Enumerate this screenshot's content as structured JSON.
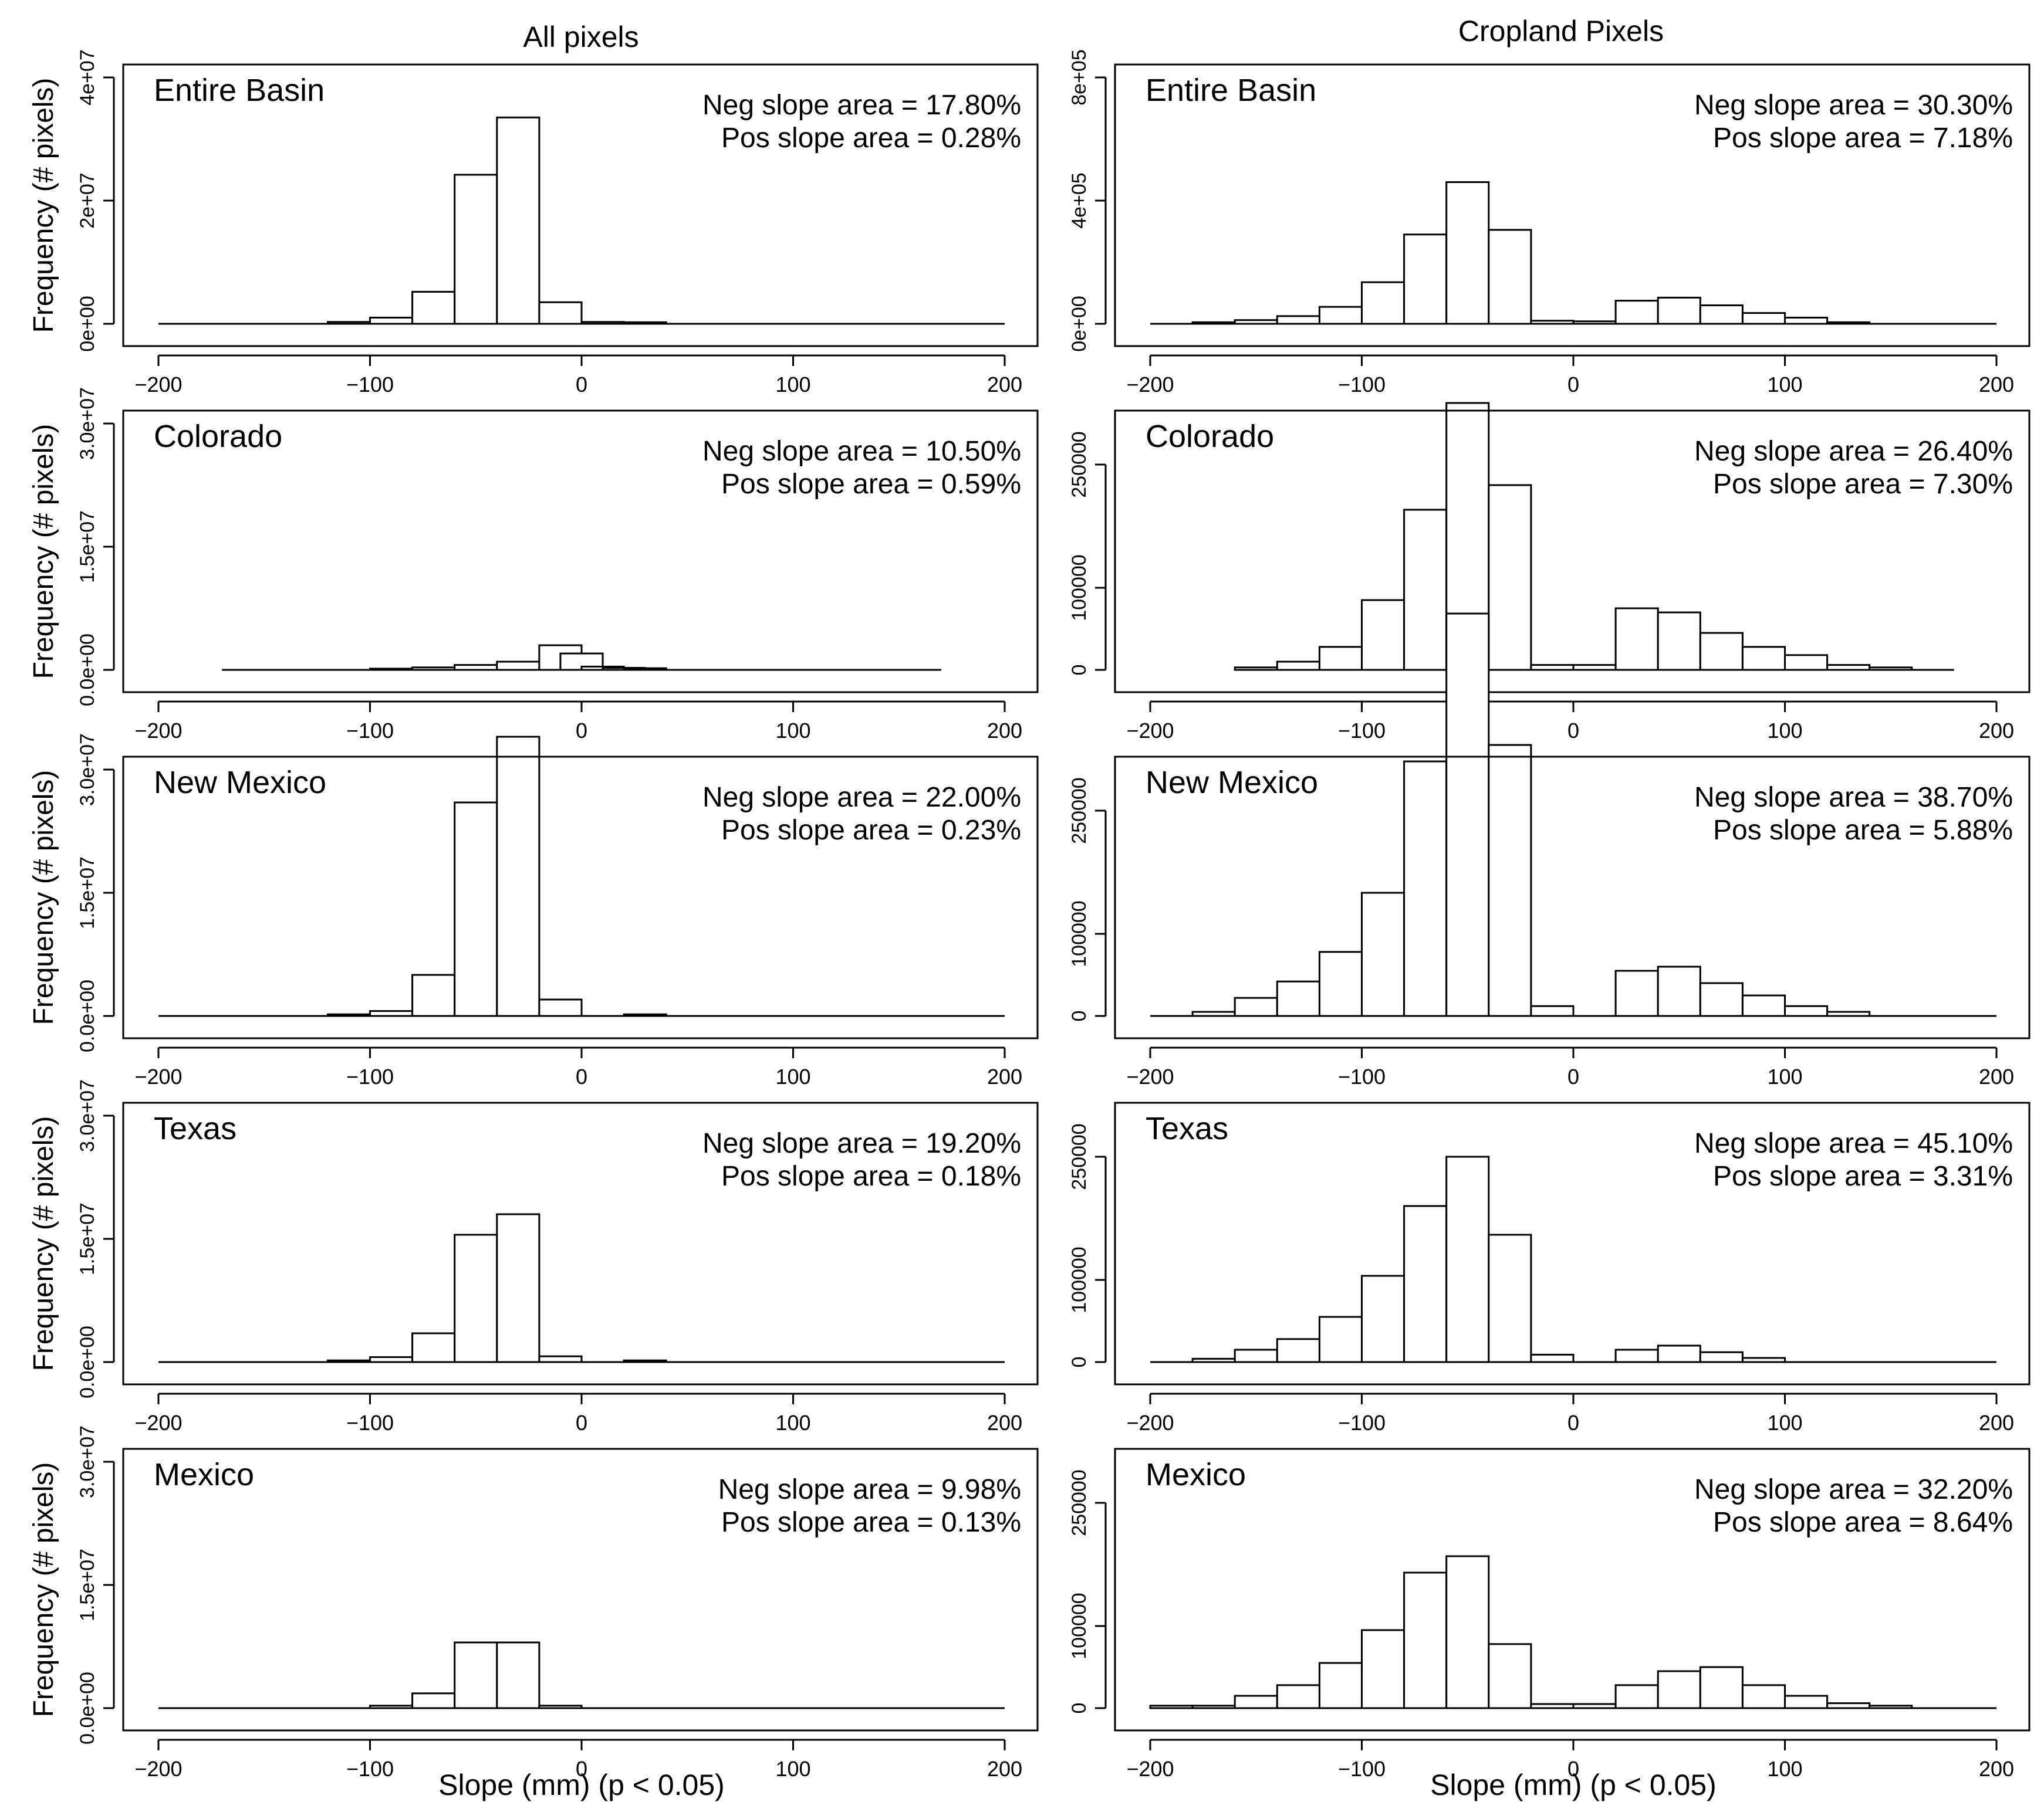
{
  "figure": {
    "col_titles": [
      "All pixels",
      "Cropland Pixels"
    ],
    "ylabel": "Frequency (# pixels)",
    "xlabel": "Slope (mm) (p < 0.05)"
  },
  "chart_data": [
    {
      "type": "bar",
      "panel": "all-entire-basin",
      "title": "Entire Basin",
      "ylabel": "Frequency (# pixels)",
      "xlabel": "",
      "xlim": [
        -200,
        200
      ],
      "ylim": [
        0,
        40000000
      ],
      "xticks": [
        -200,
        -100,
        0,
        100,
        200
      ],
      "xtick_labels": [
        "-200",
        "-100",
        "0",
        "100",
        "200"
      ],
      "yticks": [
        0,
        20000000,
        40000000
      ],
      "ytick_labels": [
        "0e+00",
        "2e+07",
        "4e+07"
      ],
      "baseline": [
        -200,
        200
      ],
      "bin_width": 20,
      "bins": [
        [
          -120,
          300000
        ],
        [
          -100,
          1000000
        ],
        [
          -80,
          5200000
        ],
        [
          -60,
          24200000
        ],
        [
          -40,
          33500000
        ],
        [
          -20,
          3500000
        ],
        [
          0,
          300000
        ],
        [
          20,
          250000
        ]
      ],
      "annotations": [
        "Neg slope area = 17.80%",
        "Pos slope area = 0.28%"
      ]
    },
    {
      "type": "bar",
      "panel": "crop-entire-basin",
      "title": "Entire Basin",
      "ylabel": "",
      "xlabel": "",
      "xlim": [
        -200,
        200
      ],
      "ylim": [
        0,
        800000
      ],
      "xticks": [
        -200,
        -100,
        0,
        100,
        200
      ],
      "xtick_labels": [
        "-200",
        "-100",
        "0",
        "100",
        "200"
      ],
      "yticks": [
        0,
        400000,
        800000
      ],
      "ytick_labels": [
        "0e+00",
        "4e+05",
        "8e+05"
      ],
      "baseline": [
        -200,
        200
      ],
      "bin_width": 20,
      "bins": [
        [
          -180,
          5000
        ],
        [
          -160,
          12000
        ],
        [
          -140,
          25000
        ],
        [
          -120,
          55000
        ],
        [
          -100,
          135000
        ],
        [
          -80,
          290000
        ],
        [
          -60,
          460000
        ],
        [
          -40,
          305000
        ],
        [
          -20,
          10000
        ],
        [
          0,
          8000
        ],
        [
          20,
          75000
        ],
        [
          40,
          85000
        ],
        [
          60,
          60000
        ],
        [
          80,
          35000
        ],
        [
          100,
          20000
        ],
        [
          120,
          5000
        ]
      ],
      "annotations": [
        "Neg slope area = 30.30%",
        "Pos slope area = 7.18%"
      ]
    },
    {
      "type": "bar",
      "panel": "all-colorado",
      "title": "Colorado",
      "ylabel": "Frequency (# pixels)",
      "xlabel": "",
      "xlim": [
        -200,
        200
      ],
      "ylim": [
        0,
        30000000
      ],
      "xticks": [
        -200,
        -100,
        0,
        100,
        200
      ],
      "xtick_labels": [
        "-200",
        "-100",
        "0",
        "100",
        "200"
      ],
      "yticks": [
        0,
        15000000,
        30000000
      ],
      "ytick_labels": [
        "0.0e+00",
        "1.5e+07",
        "3.0e+07"
      ],
      "baseline": [
        -170,
        170
      ],
      "bin_width": 20,
      "bins": [
        [
          -100,
          150000
        ],
        [
          -80,
          300000
        ],
        [
          -60,
          600000
        ],
        [
          -40,
          1000000
        ],
        [
          -20,
          3000000
        ],
        [
          -10,
          2000000
        ],
        [
          0,
          400000
        ],
        [
          10,
          250000
        ],
        [
          20,
          200000
        ]
      ],
      "annotations": [
        "Neg slope area = 10.50%",
        "Pos slope area = 0.59%"
      ]
    },
    {
      "type": "bar",
      "panel": "crop-colorado",
      "title": "Colorado",
      "ylabel": "",
      "xlabel": "",
      "xlim": [
        -200,
        200
      ],
      "ylim": [
        0,
        300000
      ],
      "xticks": [
        -200,
        -100,
        0,
        100,
        200
      ],
      "xtick_labels": [
        "-200",
        "-100",
        "0",
        "100",
        "200"
      ],
      "yticks": [
        0,
        100000,
        250000
      ],
      "ytick_labels": [
        "0",
        "100000",
        "250000"
      ],
      "baseline": [
        -160,
        180
      ],
      "bin_width": 20,
      "bins": [
        [
          -160,
          3000
        ],
        [
          -140,
          10000
        ],
        [
          -120,
          28000
        ],
        [
          -100,
          85000
        ],
        [
          -80,
          195000
        ],
        [
          -60,
          325000
        ],
        [
          -40,
          225000
        ],
        [
          -20,
          6000
        ],
        [
          0,
          6000
        ],
        [
          20,
          75000
        ],
        [
          40,
          70000
        ],
        [
          60,
          45000
        ],
        [
          80,
          28000
        ],
        [
          100,
          18000
        ],
        [
          120,
          6000
        ],
        [
          140,
          3000
        ]
      ],
      "annotations": [
        "Neg slope area = 26.40%",
        "Pos slope area = 7.30%"
      ]
    },
    {
      "type": "bar",
      "panel": "all-new-mexico",
      "title": "New Mexico",
      "ylabel": "Frequency (# pixels)",
      "xlabel": "",
      "xlim": [
        -200,
        200
      ],
      "ylim": [
        0,
        30000000
      ],
      "xticks": [
        -200,
        -100,
        0,
        100,
        200
      ],
      "xtick_labels": [
        "-200",
        "-100",
        "0",
        "100",
        "200"
      ],
      "yticks": [
        0,
        15000000,
        30000000
      ],
      "ytick_labels": [
        "0.0e+00",
        "1.5e+07",
        "3.0e+07"
      ],
      "baseline": [
        -200,
        200
      ],
      "bin_width": 20,
      "bins": [
        [
          -120,
          200000
        ],
        [
          -100,
          600000
        ],
        [
          -80,
          5000000
        ],
        [
          -60,
          26000000
        ],
        [
          -40,
          34000000
        ],
        [
          -20,
          2000000
        ],
        [
          20,
          200000
        ]
      ],
      "annotations": [
        "Neg slope area = 22.00%",
        "Pos slope area = 0.23%"
      ]
    },
    {
      "type": "bar",
      "panel": "crop-new-mexico",
      "title": "New Mexico",
      "ylabel": "",
      "xlabel": "",
      "xlim": [
        -200,
        200
      ],
      "ylim": [
        0,
        300000
      ],
      "xticks": [
        -200,
        -100,
        0,
        100,
        200
      ],
      "xtick_labels": [
        "-200",
        "-100",
        "0",
        "100",
        "200"
      ],
      "yticks": [
        0,
        100000,
        250000
      ],
      "ytick_labels": [
        "0",
        "100000",
        "250000"
      ],
      "baseline": [
        -200,
        200
      ],
      "bin_width": 20,
      "bins": [
        [
          -180,
          5000
        ],
        [
          -160,
          22000
        ],
        [
          -140,
          42000
        ],
        [
          -120,
          78000
        ],
        [
          -100,
          150000
        ],
        [
          -80,
          310000
        ],
        [
          -60,
          490000
        ],
        [
          -40,
          330000
        ],
        [
          -20,
          12000
        ],
        [
          20,
          55000
        ],
        [
          40,
          60000
        ],
        [
          60,
          40000
        ],
        [
          80,
          25000
        ],
        [
          100,
          12000
        ],
        [
          120,
          5000
        ]
      ],
      "annotations": [
        "Neg slope area = 38.70%",
        "Pos slope area = 5.88%"
      ]
    },
    {
      "type": "bar",
      "panel": "all-texas",
      "title": "Texas",
      "ylabel": "Frequency (# pixels)",
      "xlabel": "",
      "xlim": [
        -200,
        200
      ],
      "ylim": [
        0,
        30000000
      ],
      "xticks": [
        -200,
        -100,
        0,
        100,
        200
      ],
      "xtick_labels": [
        "-200",
        "-100",
        "0",
        "100",
        "200"
      ],
      "yticks": [
        0,
        15000000,
        30000000
      ],
      "ytick_labels": [
        "0.0e+00",
        "1.5e+07",
        "3.0e+07"
      ],
      "baseline": [
        -200,
        200
      ],
      "bin_width": 20,
      "bins": [
        [
          -120,
          200000
        ],
        [
          -100,
          600000
        ],
        [
          -80,
          3500000
        ],
        [
          -60,
          15500000
        ],
        [
          -40,
          18000000
        ],
        [
          -20,
          700000
        ],
        [
          20,
          200000
        ]
      ],
      "annotations": [
        "Neg slope area = 19.20%",
        "Pos slope area = 0.18%"
      ]
    },
    {
      "type": "bar",
      "panel": "crop-texas",
      "title": "Texas",
      "ylabel": "",
      "xlabel": "",
      "xlim": [
        -200,
        200
      ],
      "ylim": [
        0,
        300000
      ],
      "xticks": [
        -200,
        -100,
        0,
        100,
        200
      ],
      "xtick_labels": [
        "-200",
        "-100",
        "0",
        "100",
        "200"
      ],
      "yticks": [
        0,
        100000,
        250000
      ],
      "ytick_labels": [
        "0",
        "100000",
        "250000"
      ],
      "baseline": [
        -200,
        200
      ],
      "bin_width": 20,
      "bins": [
        [
          -180,
          4000
        ],
        [
          -160,
          15000
        ],
        [
          -140,
          28000
        ],
        [
          -120,
          55000
        ],
        [
          -100,
          105000
        ],
        [
          -80,
          190000
        ],
        [
          -60,
          250000
        ],
        [
          -40,
          155000
        ],
        [
          -20,
          9000
        ],
        [
          20,
          15000
        ],
        [
          40,
          20000
        ],
        [
          60,
          12000
        ],
        [
          80,
          5000
        ]
      ],
      "annotations": [
        "Neg slope area = 45.10%",
        "Pos slope area = 3.31%"
      ]
    },
    {
      "type": "bar",
      "panel": "all-mexico",
      "title": "Mexico",
      "ylabel": "Frequency (# pixels)",
      "xlabel": "Slope (mm) (p < 0.05)",
      "xlim": [
        -200,
        200
      ],
      "ylim": [
        0,
        30000000
      ],
      "xticks": [
        -200,
        -100,
        0,
        100,
        200
      ],
      "xtick_labels": [
        "-200",
        "-100",
        "0",
        "100",
        "200"
      ],
      "yticks": [
        0,
        15000000,
        30000000
      ],
      "ytick_labels": [
        "0.0e+00",
        "1.5e+07",
        "3.0e+07"
      ],
      "baseline": [
        -200,
        200
      ],
      "bin_width": 20,
      "bins": [
        [
          -100,
          300000
        ],
        [
          -80,
          1800000
        ],
        [
          -60,
          8000000
        ],
        [
          -40,
          8000000
        ],
        [
          -20,
          300000
        ]
      ],
      "annotations": [
        "Neg slope area = 9.98%",
        "Pos slope area = 0.13%"
      ]
    },
    {
      "type": "bar",
      "panel": "crop-mexico",
      "title": "Mexico",
      "ylabel": "",
      "xlabel": "Slope (mm) (p < 0.05)",
      "xlim": [
        -200,
        200
      ],
      "ylim": [
        0,
        300000
      ],
      "xticks": [
        -200,
        -100,
        0,
        100,
        200
      ],
      "xtick_labels": [
        "-200",
        "-100",
        "0",
        "100",
        "200"
      ],
      "yticks": [
        0,
        100000,
        250000
      ],
      "ytick_labels": [
        "0",
        "100000",
        "250000"
      ],
      "baseline": [
        -200,
        200
      ],
      "bin_width": 20,
      "bins": [
        [
          -200,
          3000
        ],
        [
          -180,
          3000
        ],
        [
          -160,
          15000
        ],
        [
          -140,
          28000
        ],
        [
          -120,
          55000
        ],
        [
          -100,
          95000
        ],
        [
          -80,
          165000
        ],
        [
          -60,
          185000
        ],
        [
          -40,
          78000
        ],
        [
          -20,
          5000
        ],
        [
          0,
          5000
        ],
        [
          20,
          28000
        ],
        [
          40,
          45000
        ],
        [
          60,
          50000
        ],
        [
          80,
          28000
        ],
        [
          100,
          15000
        ],
        [
          120,
          6000
        ],
        [
          140,
          3000
        ]
      ],
      "annotations": [
        "Neg slope area = 32.20%",
        "Pos slope area = 8.64%"
      ]
    }
  ]
}
